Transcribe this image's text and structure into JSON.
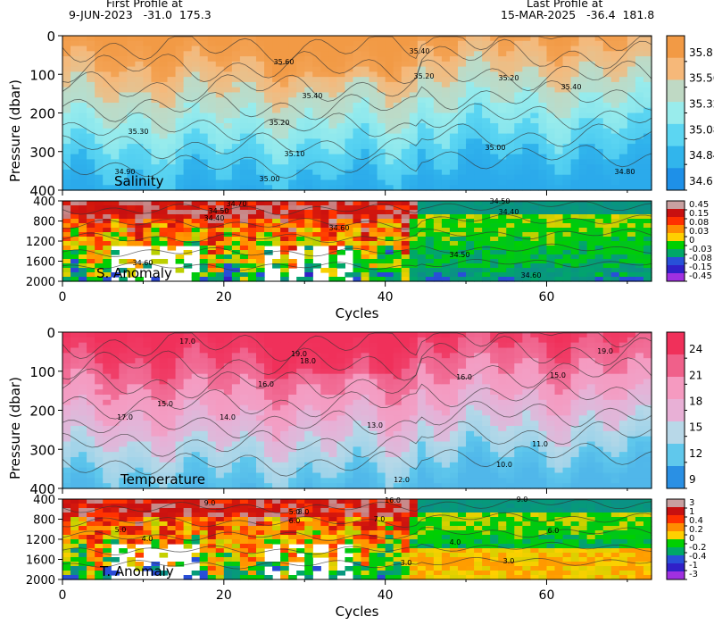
{
  "header": {
    "first_label": "First Profile at",
    "first_value": "9-JUN-2023   -31.0  175.3",
    "last_label": "Last Profile at",
    "last_value": "15-MAR-2025   -36.4  181.8"
  },
  "chart_data": [
    {
      "type": "heatmap",
      "name": "Salinity",
      "x_range": [
        0,
        73
      ],
      "y_range": [
        0,
        400
      ],
      "ylabel": "Pressure (dbar)",
      "xlabel": "",
      "yticks": [
        0,
        100,
        200,
        300,
        400
      ],
      "xticks": [],
      "colorbar": {
        "ticks": [
          "35.8",
          "35.56",
          "35.32",
          "35.08",
          "34.84",
          "34.6"
        ],
        "colors": [
          "#f29a45",
          "#f6b879",
          "#bfd9c4",
          "#99ecec",
          "#5cd6f2",
          "#31b5ec",
          "#1e90e8"
        ]
      },
      "contour_labels": [
        "35.60",
        "35.40",
        "35.20",
        "35.10",
        "35.30",
        "34.90",
        "35.00",
        "35.20",
        "35.40",
        "35.00",
        "34.80",
        "35.20",
        "35.40"
      ]
    },
    {
      "type": "heatmap",
      "name": "S. Anomaly",
      "x_range": [
        0,
        73
      ],
      "y_range": [
        400,
        2000
      ],
      "ylabel": "",
      "xlabel": "Cycles",
      "yticks": [
        400,
        800,
        1200,
        1600,
        2000
      ],
      "xticks": [
        0,
        20,
        40,
        60
      ],
      "colorbar": {
        "ticks": [
          "0.45",
          "0.15",
          "0.08",
          "0.03",
          "0",
          "-0.03",
          "-0.08",
          "-0.15",
          "-0.45"
        ],
        "colors": [
          "#c8a0a0",
          "#c81010",
          "#ff3000",
          "#ff8c00",
          "#ffd000",
          "#00d000",
          "#00a868",
          "#2850d8",
          "#3020c8",
          "#a030e0"
        ]
      },
      "contour_labels": [
        "34.70",
        "34.50",
        "34.40",
        "34.60",
        "34.50",
        "34.40",
        "34.50",
        "34.60",
        "34.60"
      ]
    },
    {
      "type": "heatmap",
      "name": "Temperature",
      "x_range": [
        0,
        73
      ],
      "y_range": [
        0,
        400
      ],
      "ylabel": "Pressure (dbar)",
      "xlabel": "",
      "yticks": [
        0,
        100,
        200,
        300,
        400
      ],
      "xticks": [],
      "colorbar": {
        "ticks": [
          "24",
          "21",
          "18",
          "15",
          "12",
          "9"
        ],
        "colors": [
          "#f0305a",
          "#f0608a",
          "#f59ac0",
          "#e8b0d6",
          "#b8d8e8",
          "#60c8ec",
          "#2a90e4"
        ]
      },
      "contour_labels": [
        "19.0",
        "18.0",
        "17.0",
        "16.0",
        "15.0",
        "14.0",
        "13.0",
        "12.0",
        "11.0",
        "10.0",
        "16.0",
        "15.0",
        "19.0",
        "17.0"
      ]
    },
    {
      "type": "heatmap",
      "name": "T. Anomaly",
      "x_range": [
        0,
        73
      ],
      "y_range": [
        400,
        2000
      ],
      "ylabel": "",
      "xlabel": "Cycles",
      "yticks": [
        400,
        800,
        1200,
        1600,
        2000
      ],
      "xticks": [
        0,
        20,
        40,
        60
      ],
      "colorbar": {
        "ticks": [
          "3",
          "1",
          "0.4",
          "0.2",
          "0",
          "-0.2",
          "-0.4",
          "-1",
          "-3"
        ],
        "colors": [
          "#c8a0a0",
          "#c81010",
          "#ff3000",
          "#ff8c00",
          "#ffd000",
          "#00d000",
          "#00a868",
          "#2850d8",
          "#3020c8",
          "#a030e0"
        ]
      },
      "contour_labels": [
        "9.0",
        "8.0",
        "6.0",
        "5.0",
        "4.0",
        "3.0",
        "7.0",
        "16.0",
        "4.0",
        "6.0",
        "3.0",
        "9.0",
        "5.0"
      ]
    }
  ]
}
